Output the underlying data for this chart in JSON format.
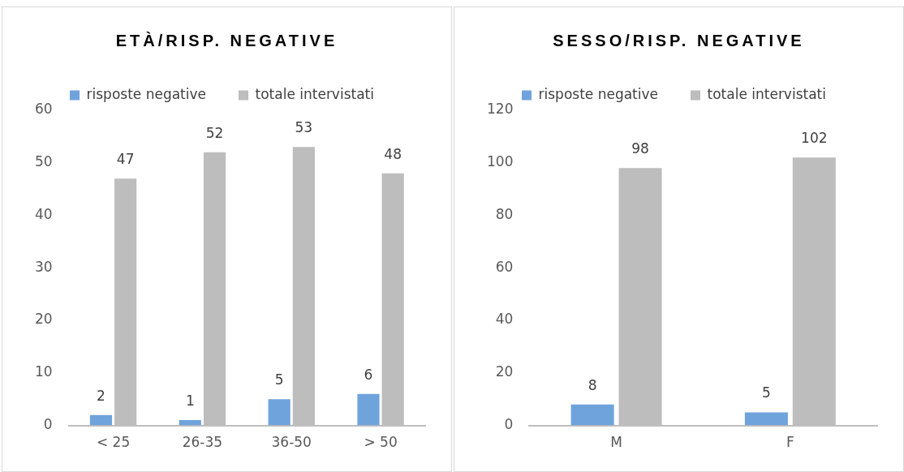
{
  "chart_data": [
    {
      "type": "bar",
      "title": "ETÀ/RISP. NEGATIVE",
      "categories": [
        "< 25",
        "26-35",
        "36-50",
        "> 50"
      ],
      "series": [
        {
          "name": "risposte negative",
          "color": "#6fa3dc",
          "values": [
            2,
            1,
            5,
            6
          ]
        },
        {
          "name": "totale intervistati",
          "color": "#bdbdbd",
          "values": [
            47,
            52,
            53,
            48
          ]
        }
      ],
      "ylim": [
        0,
        60
      ],
      "yticks": [
        0,
        10,
        20,
        30,
        40,
        50,
        60
      ],
      "grid": false,
      "legend": "top",
      "data_labels": true
    },
    {
      "type": "bar",
      "title": "SESSO/RISP. NEGATIVE",
      "categories": [
        "M",
        "F"
      ],
      "series": [
        {
          "name": "risposte negative",
          "color": "#6fa3dc",
          "values": [
            8,
            5
          ]
        },
        {
          "name": "totale intervistati",
          "color": "#bdbdbd",
          "values": [
            98,
            102
          ]
        }
      ],
      "ylim": [
        0,
        120
      ],
      "yticks": [
        0,
        20,
        40,
        60,
        80,
        100,
        120
      ],
      "grid": false,
      "legend": "top",
      "data_labels": true
    }
  ]
}
